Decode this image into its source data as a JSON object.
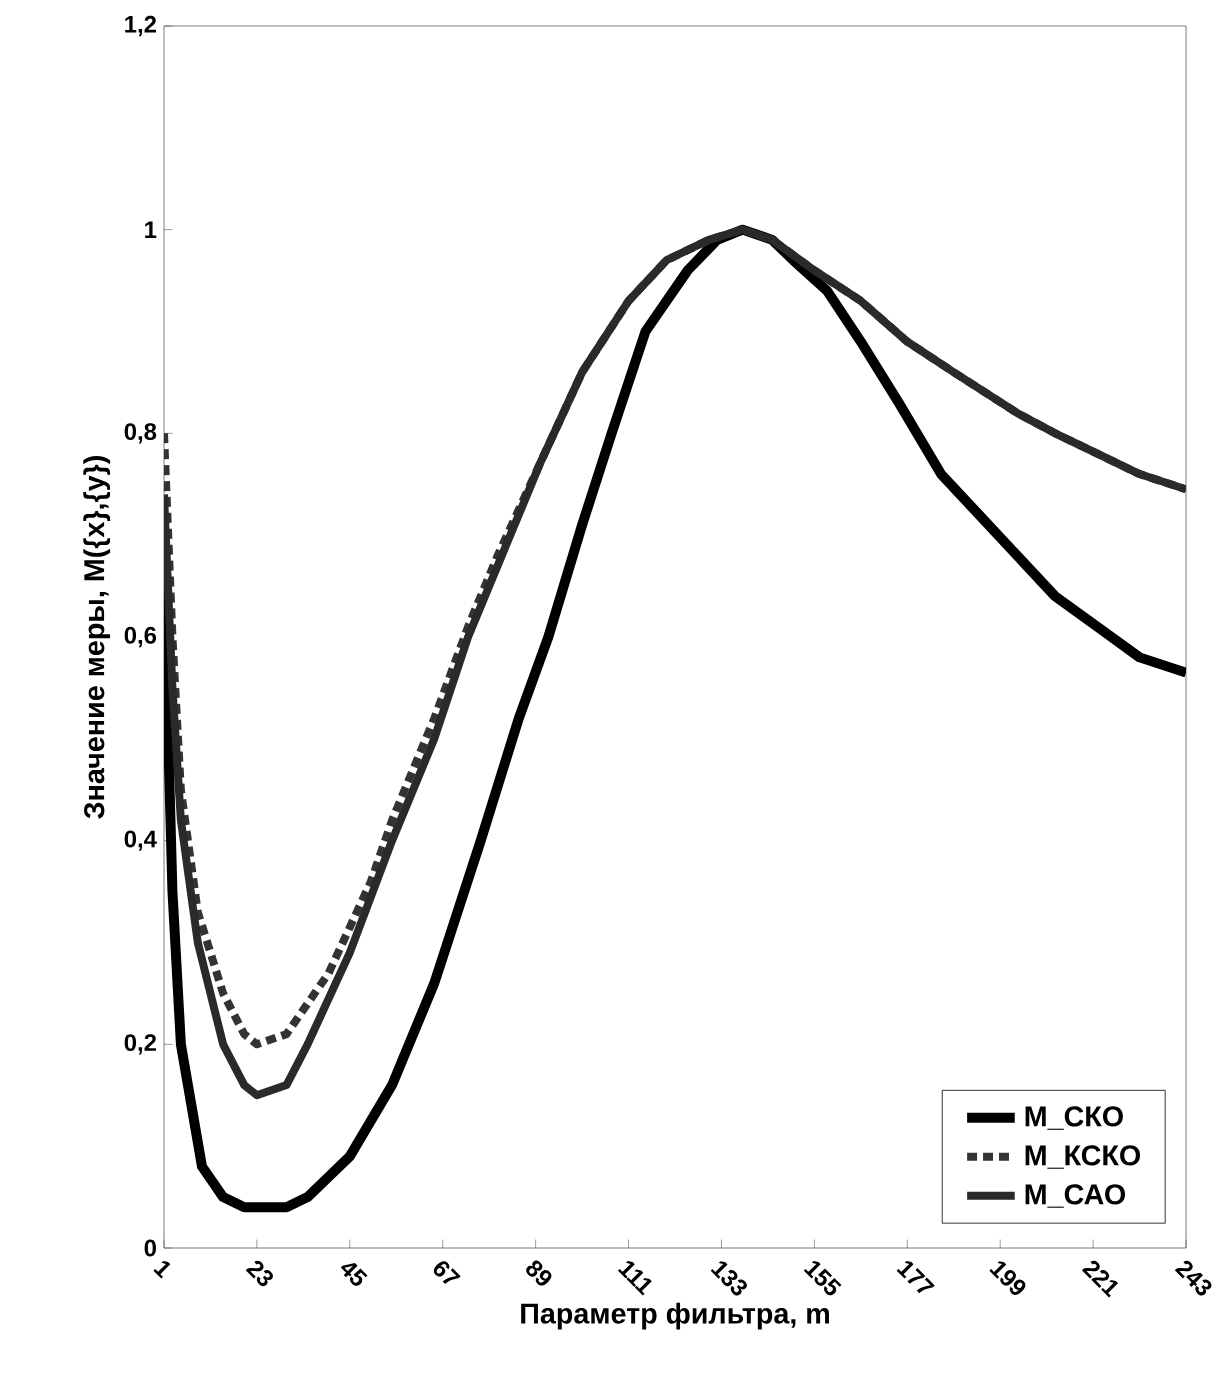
{
  "chart_data": {
    "type": "line",
    "xlabel": "Параметр фильтра, m",
    "ylabel": "Значение меры, M({x},{y})",
    "xlim": [
      1,
      243
    ],
    "xticks": [
      1,
      23,
      45,
      67,
      89,
      111,
      133,
      155,
      177,
      199,
      221,
      243
    ],
    "ylim": [
      0,
      1.2
    ],
    "yticks": [
      0,
      {
        "value": 0.2,
        "label": "0,2"
      },
      {
        "value": 0.4,
        "label": "0,4"
      },
      {
        "value": 0.6,
        "label": "0,6"
      },
      {
        "value": 0.8,
        "label": "0,8"
      },
      1,
      {
        "value": 1.2,
        "label": "1,2"
      }
    ],
    "grid": false,
    "legend": "bottom right",
    "marker": "none",
    "series": [
      {
        "name": "M_СКО",
        "color": "#000000",
        "line_style": "solid",
        "x": [
          1,
          3,
          5,
          10,
          15,
          20,
          25,
          30,
          35,
          45,
          55,
          65,
          76,
          85,
          92,
          100,
          107,
          115,
          125,
          132,
          138,
          145,
          150,
          158,
          166,
          175,
          185,
          194,
          203,
          212,
          222,
          232,
          243
        ],
        "values": [
          0.65,
          0.35,
          0.2,
          0.08,
          0.05,
          0.04,
          0.04,
          0.04,
          0.05,
          0.09,
          0.16,
          0.26,
          0.4,
          0.52,
          0.6,
          0.71,
          0.8,
          0.9,
          0.96,
          0.99,
          1.0,
          0.99,
          0.97,
          0.94,
          0.89,
          0.83,
          0.76,
          0.72,
          0.68,
          0.64,
          0.61,
          0.58,
          0.565
        ]
      },
      {
        "name": "M_КСКО",
        "color": "#333333",
        "line_style": "dashed",
        "x": [
          1,
          3,
          5,
          9,
          15,
          20,
          23,
          30,
          40,
          50,
          55,
          65,
          73,
          80,
          90,
          100,
          111,
          120,
          130,
          138,
          145,
          155,
          166,
          177,
          188,
          203,
          212,
          222,
          232,
          243
        ],
        "values": [
          0.8,
          0.6,
          0.45,
          0.33,
          0.25,
          0.21,
          0.2,
          0.21,
          0.27,
          0.36,
          0.42,
          0.52,
          0.61,
          0.68,
          0.77,
          0.86,
          0.93,
          0.97,
          0.99,
          1.0,
          0.99,
          0.96,
          0.93,
          0.89,
          0.86,
          0.82,
          0.8,
          0.78,
          0.76,
          0.745
        ]
      },
      {
        "name": "M_САО",
        "color": "#2a2a2a",
        "line_style": "solid",
        "x": [
          1,
          3,
          5,
          9,
          15,
          20,
          23,
          30,
          35,
          45,
          55,
          65,
          73,
          80,
          90,
          100,
          111,
          120,
          130,
          138,
          145,
          155,
          166,
          177,
          188,
          203,
          212,
          222,
          232,
          243
        ],
        "values": [
          0.74,
          0.55,
          0.42,
          0.3,
          0.2,
          0.16,
          0.15,
          0.16,
          0.2,
          0.29,
          0.4,
          0.5,
          0.6,
          0.67,
          0.77,
          0.86,
          0.93,
          0.97,
          0.99,
          1.0,
          0.99,
          0.96,
          0.93,
          0.89,
          0.86,
          0.82,
          0.8,
          0.78,
          0.76,
          0.745
        ]
      }
    ]
  }
}
